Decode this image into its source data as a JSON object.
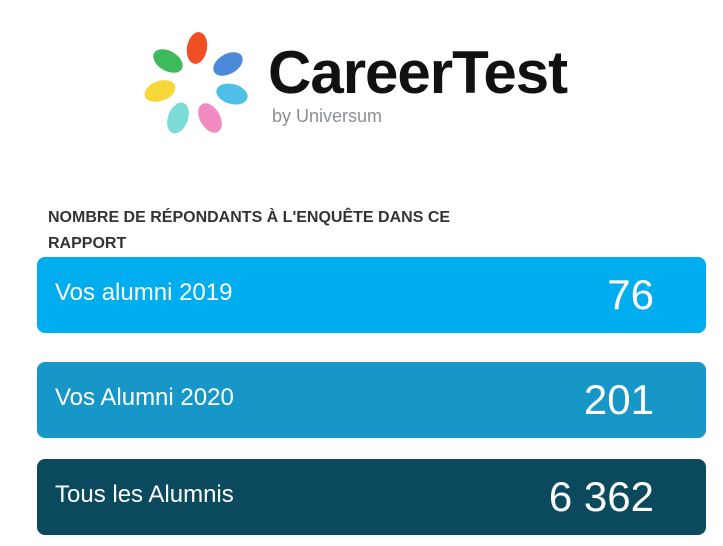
{
  "logo": {
    "brand": "CareerTest",
    "byline": "by Universum"
  },
  "heading": "NOMBRE DE RÉPONDANTS À L'ENQUÊTE DANS CE RAPPORT",
  "rows": [
    {
      "label": "Vos alumni 2019",
      "value": "76"
    },
    {
      "label": "Vos Alumni 2020",
      "value": "201"
    },
    {
      "label": "Tous les Alumnis",
      "value": "6 362"
    }
  ]
}
